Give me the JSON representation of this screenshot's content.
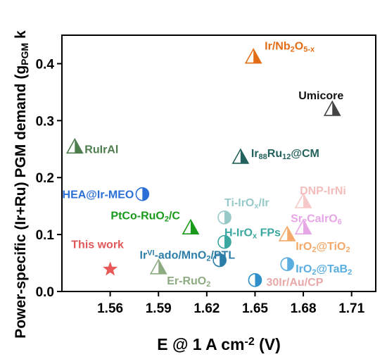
{
  "chart_data": {
    "type": "scatter",
    "xlabel_parts": [
      {
        "t": "E @ 1 A cm"
      },
      {
        "t": "-2",
        "sup": true
      },
      {
        "t": " (V)"
      }
    ],
    "ylabel_parts": [
      {
        "t": "Power-specific (Ir+Ru) PGM demand (g"
      },
      {
        "t": "PGM",
        "sub": true
      },
      {
        "t": " k"
      }
    ],
    "xlim": [
      1.53,
      1.725
    ],
    "ylim": [
      0,
      0.45
    ],
    "xticks": [
      1.56,
      1.59,
      1.62,
      1.65,
      1.68,
      1.71
    ],
    "yticks": [
      0.0,
      0.1,
      0.2,
      0.3,
      0.4
    ],
    "ytick_labels": [
      "0.0",
      "0.1",
      "0.2",
      "0.3",
      "0.4"
    ],
    "points": [
      {
        "x": 1.56,
        "y": 0.039,
        "marker": "star",
        "color": "#e85a5a",
        "label_color": "#e15759",
        "label_parts": [
          {
            "t": "This work"
          }
        ]
      },
      {
        "x": 1.538,
        "y": 0.254,
        "marker": "triangle",
        "color": "#4e7d4e",
        "label_color": "#4e7d4e",
        "label_parts": [
          {
            "t": "RuIrAl"
          }
        ]
      },
      {
        "x": 1.58,
        "y": 0.171,
        "marker": "circle",
        "color": "#2c6fd6",
        "label_color": "#2c6fd6",
        "label_parts": [
          {
            "t": "HEA@Ir-MEO"
          }
        ]
      },
      {
        "x": 1.61,
        "y": 0.112,
        "marker": "triangle",
        "color": "#1a9a1a",
        "label_color": "#1a9a1a",
        "label_parts": [
          {
            "t": "PtCo-RuO"
          },
          {
            "t": "2",
            "sub": true
          },
          {
            "t": "/C"
          }
        ]
      },
      {
        "x": 1.59,
        "y": 0.042,
        "marker": "triangle",
        "color": "#8cab80",
        "label_color": "#8cab80",
        "label_parts": [
          {
            "t": "Er-RuO"
          },
          {
            "t": "2",
            "sub": true
          }
        ]
      },
      {
        "x": 1.649,
        "y": 0.412,
        "marker": "triangle",
        "color": "#e36d17",
        "label_color": "#e36d17",
        "label_parts": [
          {
            "t": "Ir/Nb"
          },
          {
            "t": "2",
            "sub": true
          },
          {
            "t": "O"
          },
          {
            "t": "5-x",
            "sub": true
          }
        ]
      },
      {
        "x": 1.698,
        "y": 0.32,
        "marker": "triangle",
        "color": "#444444",
        "label_color": "#111111",
        "label_parts": [
          {
            "t": "Umicore"
          }
        ]
      },
      {
        "x": 1.641,
        "y": 0.236,
        "marker": "triangle",
        "color": "#23625c",
        "label_color": "#23625c",
        "label_parts": [
          {
            "t": "Ir"
          },
          {
            "t": "88",
            "sub": true
          },
          {
            "t": "Ru"
          },
          {
            "t": "12",
            "sub": true
          },
          {
            "t": "@CM"
          }
        ]
      },
      {
        "x": 1.631,
        "y": 0.13,
        "marker": "circle",
        "color": "#98c9c9",
        "label_color": "#98c9c9",
        "label_parts": [
          {
            "t": "Ti-IrO"
          },
          {
            "t": "x",
            "sub": true
          },
          {
            "t": "/Ir"
          }
        ]
      },
      {
        "x": 1.631,
        "y": 0.087,
        "marker": "circle",
        "color": "#3aa8a0",
        "label_color": "#3aa8a0",
        "label_parts": [
          {
            "t": "H-IrO"
          },
          {
            "t": "x",
            "sub": true
          },
          {
            "t": " FPs"
          }
        ]
      },
      {
        "x": 1.628,
        "y": 0.055,
        "marker": "circle",
        "color": "#2c7ea8",
        "label_color": "#2c7ea8",
        "label_parts": [
          {
            "t": "Ir"
          },
          {
            "t": "VI",
            "sup": true
          },
          {
            "t": "-ado/MnO"
          },
          {
            "t": "2",
            "sub": true
          },
          {
            "t": "/PTL"
          }
        ]
      },
      {
        "x": 1.65,
        "y": 0.02,
        "marker": "circle",
        "color": "#2f8fc9",
        "label_color": "#e8a9a9",
        "label_parts": [
          {
            "t": "30Ir/Au/CP"
          }
        ]
      },
      {
        "x": 1.67,
        "y": 0.048,
        "marker": "circle",
        "color": "#5aaee0",
        "label_color": "#5aaee0",
        "label_parts": [
          {
            "t": "IrO"
          },
          {
            "t": "2",
            "sub": true
          },
          {
            "t": "@TaB"
          },
          {
            "t": "2",
            "sub": true
          }
        ]
      },
      {
        "x": 1.67,
        "y": 0.1,
        "marker": "triangle",
        "color": "#f4a96a",
        "label_color": "#f4a96a",
        "label_parts": [
          {
            "t": "IrO"
          },
          {
            "t": "2",
            "sub": true
          },
          {
            "t": "@TiO"
          },
          {
            "t": "2",
            "sub": true
          }
        ]
      },
      {
        "x": 1.68,
        "y": 0.158,
        "marker": "triangle",
        "color": "#f7c8c8",
        "label_color": "#f5bcbc",
        "label_parts": [
          {
            "t": "DNP-IrNi"
          }
        ]
      },
      {
        "x": 1.68,
        "y": 0.112,
        "marker": "triangle",
        "color": "#e6a6e6",
        "label_color": "#e6a6e6",
        "label_parts": [
          {
            "t": "Sr"
          },
          {
            "t": "2",
            "sub": true
          },
          {
            "t": "CaIrO"
          },
          {
            "t": "6",
            "sub": true
          }
        ]
      }
    ]
  }
}
